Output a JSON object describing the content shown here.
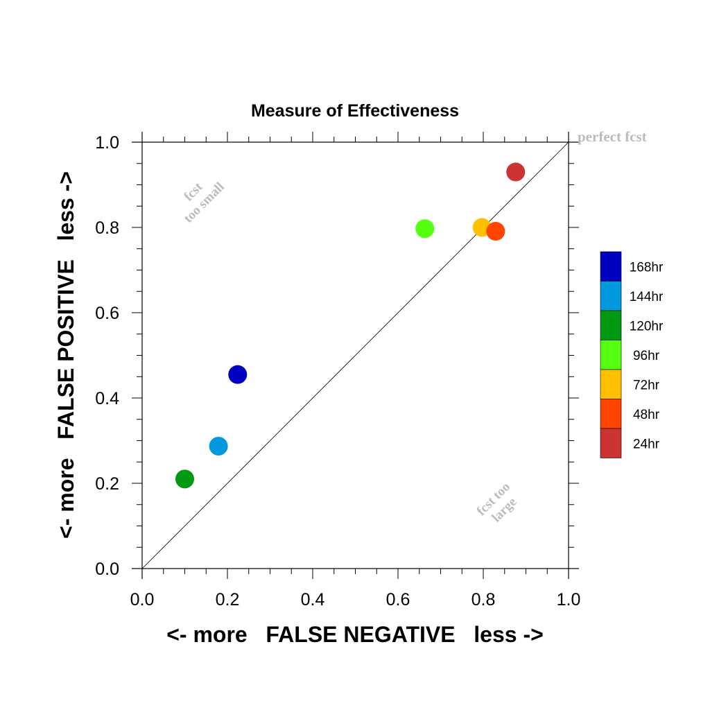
{
  "chart_data": {
    "type": "scatter",
    "title": "Measure of Effectiveness",
    "xlabel": "<- more   FALSE NEGATIVE   less ->",
    "ylabel": "<- more   FALSE POSITIVE   less ->",
    "xlim": [
      0.0,
      1.0
    ],
    "ylim": [
      0.0,
      1.0
    ],
    "xticks": [
      "0.0",
      "0.2",
      "0.4",
      "0.6",
      "0.8",
      "1.0"
    ],
    "yticks": [
      "0.0",
      "0.2",
      "0.4",
      "0.6",
      "0.8",
      "1.0"
    ],
    "grid": false,
    "reference_line": {
      "from": [
        0,
        0
      ],
      "to": [
        1,
        1
      ]
    },
    "annotations": {
      "perfect": "perfect fcst",
      "too_small": [
        "fcst",
        "too small"
      ],
      "too_large": [
        "fcst too",
        "large"
      ]
    },
    "legend_position": "right",
    "series": [
      {
        "name": "168hr",
        "color": "#0000c0",
        "x": 0.224,
        "y": 0.455
      },
      {
        "name": "144hr",
        "color": "#0099dd",
        "x": 0.179,
        "y": 0.287
      },
      {
        "name": "120hr",
        "color": "#009911",
        "x": 0.1,
        "y": 0.21
      },
      {
        "name": "96hr",
        "color": "#55ff11",
        "x": 0.663,
        "y": 0.797
      },
      {
        "name": "72hr",
        "color": "#ffc000",
        "x": 0.797,
        "y": 0.8
      },
      {
        "name": "48hr",
        "color": "#ff4400",
        "x": 0.829,
        "y": 0.791
      },
      {
        "name": "24hr",
        "color": "#cc3333",
        "x": 0.876,
        "y": 0.93
      }
    ]
  }
}
